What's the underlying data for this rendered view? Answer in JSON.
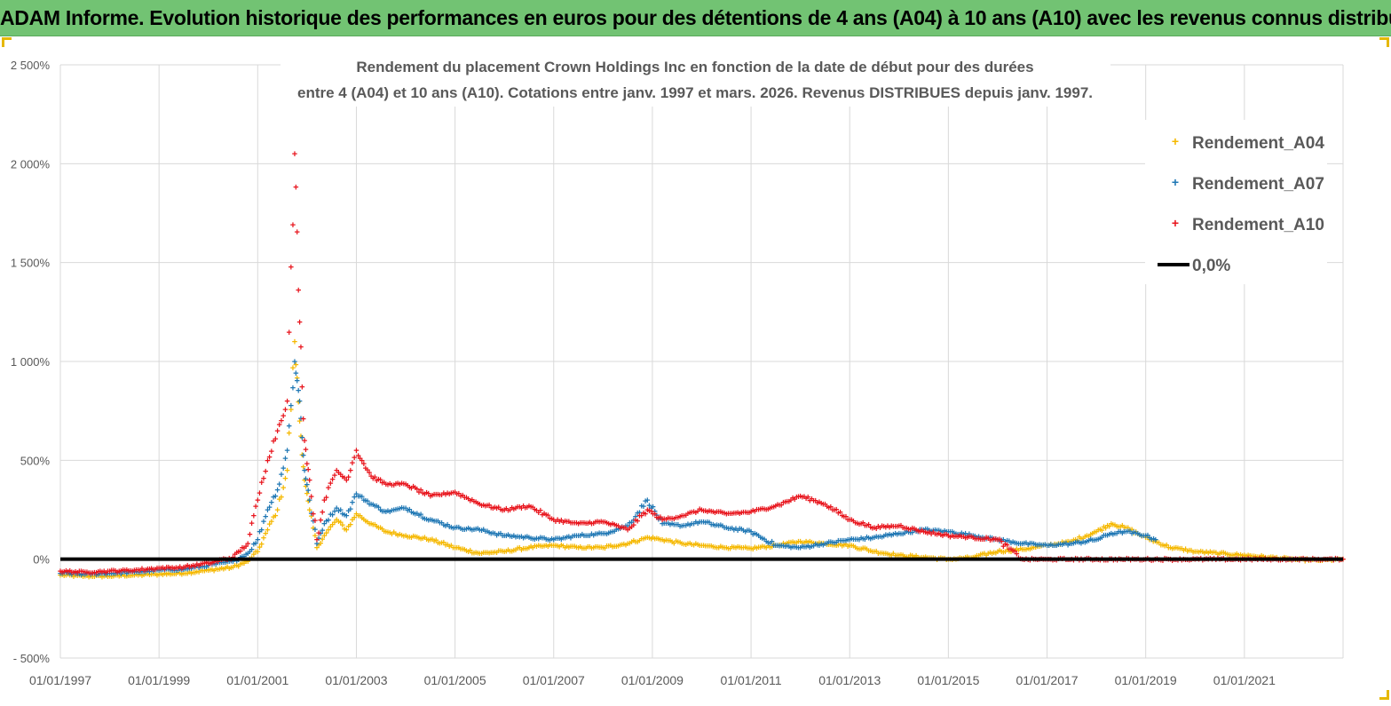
{
  "banner": {
    "title": "ADAM Informe. Evolution historique des performances en euros pour des détentions de 4 ans (A04) à 10 ans (A10) avec les revenus connus distribués"
  },
  "colors": {
    "banner_bg": "#72c373",
    "a04": "#f5b800",
    "a07": "#1f77b4",
    "a10": "#e8141c",
    "zero_line": "#000000",
    "grid": "#d9d9d9"
  },
  "chart_data": {
    "type": "scatter",
    "title_line1": "Rendement du placement Crown Holdings Inc en fonction de la date de début pour des durées",
    "title_line2": "entre 4 (A04) et 10 ans (A10).  Cotations entre janv. 1997 et mars. 2026. Revenus DISTRIBUES depuis janv. 1997.",
    "ylim": [
      -500,
      2500
    ],
    "y_ticks": [
      -500,
      0,
      500,
      1000,
      1500,
      2000,
      2500
    ],
    "y_tick_labels": [
      "- 500%",
      "0%",
      "500%",
      "1 000%",
      "1 500%",
      "2 000%",
      "2 500%"
    ],
    "xlim": [
      1997.0,
      2023.0
    ],
    "x_ticks": [
      1997,
      1999,
      2001,
      2003,
      2005,
      2007,
      2009,
      2011,
      2013,
      2015,
      2017,
      2019,
      2021
    ],
    "x_tick_labels": [
      "01/01/1997",
      "01/01/1999",
      "01/01/2001",
      "01/01/2003",
      "01/01/2005",
      "01/01/2007",
      "01/01/2009",
      "01/01/2011",
      "01/01/2013",
      "01/01/2015",
      "01/01/2017",
      "01/01/2019",
      "01/01/2021"
    ],
    "legend": [
      "Rendement_A04",
      "Rendement_A07",
      "Rendement_A10",
      "0,0%"
    ],
    "legend_position": "top-right",
    "series": [
      {
        "name": "Rendement_A04",
        "x": [
          1997.0,
          1997.5,
          1998.0,
          1998.5,
          1999.0,
          1999.5,
          2000.0,
          2000.5,
          2000.8,
          2001.0,
          2001.2,
          2001.4,
          2001.6,
          2001.75,
          2001.85,
          2001.95,
          2002.05,
          2002.2,
          2002.35,
          2002.6,
          2002.8,
          2003.0,
          2003.3,
          2003.6,
          2004.0,
          2004.5,
          2005.0,
          2005.5,
          2006.0,
          2006.5,
          2007.0,
          2007.5,
          2008.0,
          2008.5,
          2008.9,
          2009.2,
          2009.6,
          2010.0,
          2010.5,
          2011.0,
          2011.5,
          2012.0,
          2012.5,
          2013.0,
          2013.5,
          2014.0,
          2014.5,
          2015.0,
          2015.5,
          2016.0,
          2016.5,
          2017.0,
          2017.5,
          2018.0,
          2018.3,
          2018.6,
          2019.0,
          2019.5,
          2020.0,
          2020.5,
          2021.0,
          2021.5,
          2022.0,
          2022.5,
          2023.0
        ],
        "y": [
          -80,
          -85,
          -85,
          -80,
          -75,
          -70,
          -55,
          -40,
          -10,
          40,
          150,
          250,
          450,
          1100,
          700,
          400,
          250,
          60,
          120,
          200,
          150,
          230,
          180,
          140,
          120,
          100,
          60,
          30,
          40,
          60,
          70,
          60,
          60,
          80,
          110,
          100,
          80,
          70,
          60,
          55,
          70,
          90,
          80,
          70,
          40,
          20,
          10,
          0,
          10,
          40,
          50,
          70,
          90,
          140,
          180,
          160,
          110,
          60,
          40,
          30,
          20,
          10,
          0,
          -5,
          0
        ]
      },
      {
        "name": "Rendement_A07",
        "x": [
          1997.0,
          1997.5,
          1998.0,
          1998.5,
          1999.0,
          1999.5,
          2000.0,
          2000.5,
          2000.8,
          2001.0,
          2001.2,
          2001.4,
          2001.6,
          2001.75,
          2001.85,
          2001.95,
          2002.05,
          2002.2,
          2002.35,
          2002.6,
          2002.8,
          2003.0,
          2003.3,
          2003.6,
          2004.0,
          2004.5,
          2005.0,
          2005.5,
          2006.0,
          2006.5,
          2007.0,
          2007.5,
          2008.0,
          2008.5,
          2008.9,
          2009.2,
          2009.6,
          2010.0,
          2010.5,
          2011.0,
          2011.5,
          2012.0,
          2012.5,
          2013.0,
          2013.5,
          2014.0,
          2014.5,
          2015.0,
          2015.5,
          2016.0,
          2016.5,
          2017.0,
          2017.5,
          2018.0,
          2018.3,
          2018.6,
          2019.0,
          2019.2
        ],
        "y": [
          -70,
          -75,
          -70,
          -65,
          -55,
          -50,
          -30,
          -10,
          30,
          100,
          250,
          350,
          550,
          1000,
          800,
          450,
          300,
          80,
          180,
          260,
          220,
          330,
          280,
          240,
          260,
          200,
          160,
          150,
          120,
          110,
          100,
          120,
          130,
          170,
          300,
          180,
          170,
          190,
          160,
          140,
          70,
          60,
          80,
          100,
          110,
          130,
          150,
          140,
          120,
          100,
          80,
          70,
          80,
          100,
          130,
          140,
          120,
          100
        ]
      },
      {
        "name": "Rendement_A10",
        "x": [
          1997.0,
          1997.5,
          1998.0,
          1998.5,
          1999.0,
          1999.5,
          2000.0,
          2000.5,
          2000.8,
          2001.0,
          2001.2,
          2001.4,
          2001.6,
          2001.75,
          2001.85,
          2001.95,
          2002.05,
          2002.2,
          2002.35,
          2002.6,
          2002.8,
          2003.0,
          2003.3,
          2003.6,
          2004.0,
          2004.5,
          2005.0,
          2005.5,
          2006.0,
          2006.5,
          2007.0,
          2007.5,
          2008.0,
          2008.5,
          2008.9,
          2009.2,
          2009.6,
          2010.0,
          2010.5,
          2011.0,
          2011.5,
          2012.0,
          2012.5,
          2013.0,
          2013.5,
          2014.0,
          2014.5,
          2015.0,
          2015.5,
          2016.0,
          2016.5,
          2017.0,
          2017.5,
          2018.0,
          2018.5,
          2019.0,
          2019.5,
          2020.0,
          2020.5,
          2021.0,
          2021.5,
          2022.0,
          2022.5,
          2023.0
        ],
        "y": [
          -60,
          -65,
          -60,
          -55,
          -45,
          -40,
          -20,
          10,
          80,
          300,
          500,
          650,
          800,
          2050,
          1200,
          600,
          400,
          100,
          300,
          450,
          400,
          550,
          420,
          380,
          380,
          320,
          340,
          280,
          250,
          270,
          200,
          180,
          190,
          150,
          250,
          200,
          220,
          250,
          230,
          240,
          270,
          320,
          280,
          200,
          160,
          170,
          140,
          120,
          110,
          100,
          0,
          0,
          0,
          0,
          0,
          0,
          0,
          0,
          0,
          0,
          0,
          0,
          0,
          0
        ]
      }
    ],
    "reference_line": {
      "name": "0,0%",
      "y": 0
    }
  }
}
